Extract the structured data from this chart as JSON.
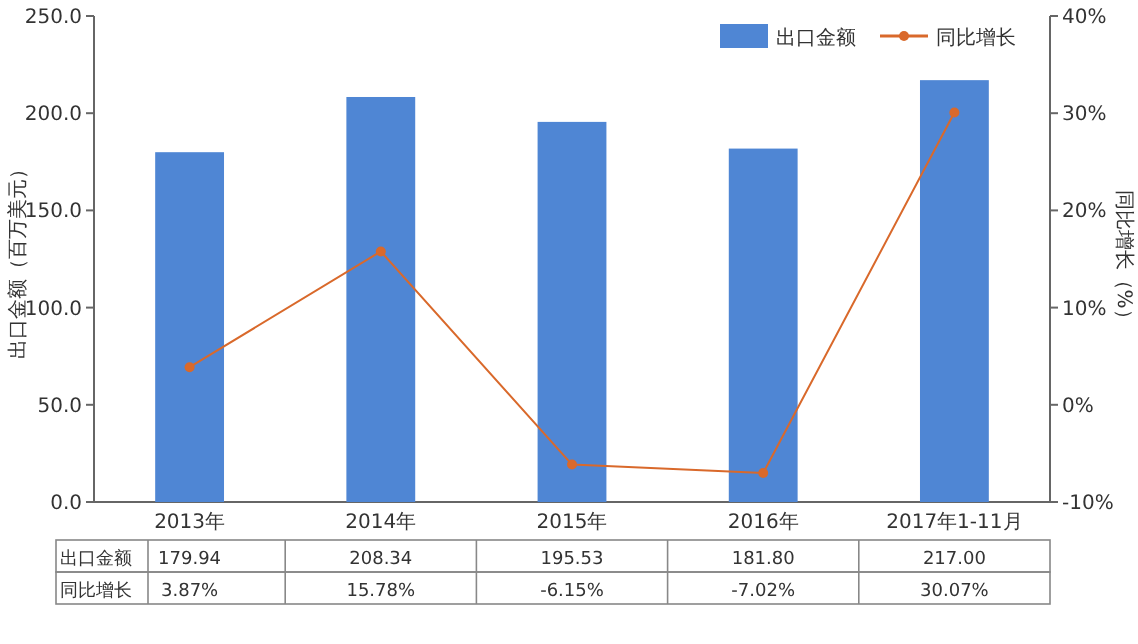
{
  "chart_data": {
    "type": "bar",
    "categories": [
      "2013年",
      "2014年",
      "2015年",
      "2016年",
      "2017年1-11月"
    ],
    "series": [
      {
        "name": "出口金额",
        "color": "#4f86d4",
        "values": [
          179.94,
          208.34,
          195.53,
          181.8,
          217.0
        ],
        "value_labels": [
          "179.94",
          "208.34",
          "195.53",
          "181.80",
          "217.00"
        ]
      },
      {
        "name": "同比增长",
        "type": "line",
        "axis": "y2",
        "color": "#d9692b",
        "marker": "circle",
        "values": [
          3.87,
          15.78,
          -6.15,
          -7.02,
          30.07
        ],
        "value_labels": [
          "3.87%",
          "15.78%",
          "-6.15%",
          "-7.02%",
          "30.07%"
        ]
      }
    ],
    "ylim": [
      0,
      250
    ],
    "yticks": [
      {
        "value": 0,
        "label": "0.0"
      },
      {
        "value": 50,
        "label": "50.0"
      },
      {
        "value": 100,
        "label": "100.0"
      },
      {
        "value": 150,
        "label": "150.0"
      },
      {
        "value": 200,
        "label": "200.0"
      },
      {
        "value": 250,
        "label": "250.0"
      }
    ],
    "y2lim": [
      -10,
      40
    ],
    "y2ticks": [
      {
        "value": -10,
        "label": "-10%"
      },
      {
        "value": 0,
        "label": "0%"
      },
      {
        "value": 10,
        "label": "10%"
      },
      {
        "value": 20,
        "label": "20%"
      },
      {
        "value": 30,
        "label": "30%"
      },
      {
        "value": 40,
        "label": "40%"
      }
    ],
    "ylabel": "出口金额（百万美元）",
    "y2label": "同比增长（%）",
    "legend": "top right"
  }
}
